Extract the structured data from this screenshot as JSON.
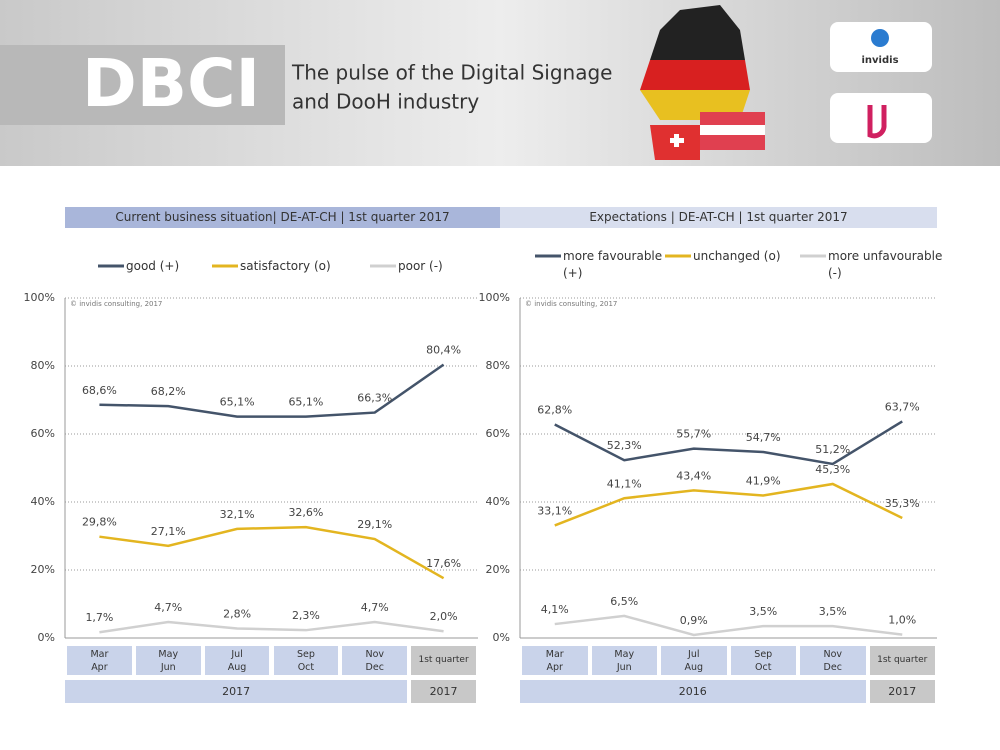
{
  "header": {
    "logo": "DBCI",
    "tagline": [
      "The pulse of the Digital Signage",
      "and DooH industry"
    ],
    "sponsor": "invidis"
  },
  "chart_data": [
    {
      "type": "line",
      "title": "Current business situation| DE-AT-CH | 1st quarter 2017",
      "annotation": "© invidis consulting, 2017",
      "categories": [
        "Mar\nApr",
        "May\nJun",
        "Jul\nAug",
        "Sep\nOct",
        "Nov\nDec",
        "1st quarter"
      ],
      "groups": [
        "2017",
        "2017"
      ],
      "ylim": [
        0,
        100
      ],
      "yticks": [
        {
          "value": 0,
          "label": "0%"
        },
        {
          "value": 20,
          "label": "20%"
        },
        {
          "value": 40,
          "label": "40%"
        },
        {
          "value": 60,
          "label": "60%"
        },
        {
          "value": 80,
          "label": "80%"
        },
        {
          "value": 100,
          "label": "100%"
        }
      ],
      "grid": true,
      "series": [
        {
          "name": "good (+)",
          "color": "#44546a",
          "values": [
            68.6,
            68.2,
            65.1,
            65.1,
            66.3,
            80.4
          ],
          "value_labels": [
            "68,6%",
            "68,2%",
            "65,1%",
            "65,1%",
            "66,3%",
            "80,4%"
          ]
        },
        {
          "name": "satisfactory (o)",
          "color": "#e3b520",
          "values": [
            29.8,
            27.1,
            32.1,
            32.6,
            29.1,
            17.6
          ],
          "value_labels": [
            "29,8%",
            "27,1%",
            "32,1%",
            "32,6%",
            "29,1%",
            "17,6%"
          ]
        },
        {
          "name": "poor (-)",
          "color": "#d0d0d0",
          "values": [
            1.7,
            4.7,
            2.8,
            2.3,
            4.7,
            2.0
          ],
          "value_labels": [
            "1,7%",
            "4,7%",
            "2,8%",
            "2,3%",
            "4,7%",
            "2,0%"
          ]
        }
      ]
    },
    {
      "type": "line",
      "title": "Expectations | DE-AT-CH | 1st quarter 2017",
      "annotation": "© invidis consulting, 2017",
      "categories": [
        "Mar\nApr",
        "May\nJun",
        "Jul\nAug",
        "Sep\nOct",
        "Nov\nDec",
        "1st quarter"
      ],
      "groups": [
        "2016",
        "2017"
      ],
      "ylim": [
        0,
        100
      ],
      "yticks": [
        {
          "value": 0,
          "label": "0%"
        },
        {
          "value": 20,
          "label": "20%"
        },
        {
          "value": 40,
          "label": "40%"
        },
        {
          "value": 60,
          "label": "60%"
        },
        {
          "value": 80,
          "label": "80%"
        },
        {
          "value": 100,
          "label": "100%"
        }
      ],
      "grid": true,
      "series": [
        {
          "name": "more favourable (+)",
          "color": "#44546a",
          "values": [
            62.8,
            52.3,
            55.7,
            54.7,
            51.2,
            63.7
          ],
          "value_labels": [
            "62,8%",
            "52,3%",
            "55,7%",
            "54,7%",
            "51,2%",
            "63,7%"
          ]
        },
        {
          "name": "unchanged (o)",
          "color": "#e3b520",
          "values": [
            33.1,
            41.1,
            43.4,
            41.9,
            45.3,
            35.3
          ],
          "value_labels": [
            "33,1%",
            "41,1%",
            "43,4%",
            "41,9%",
            "45,3%",
            "35,3%"
          ]
        },
        {
          "name": "more unfavourable (-)",
          "color": "#d0d0d0",
          "values": [
            4.1,
            6.5,
            0.9,
            3.5,
            3.5,
            1.0
          ],
          "value_labels": [
            "4,1%",
            "6,5%",
            "0,9%",
            "3,5%",
            "3,5%",
            "1,0%"
          ]
        }
      ]
    }
  ]
}
